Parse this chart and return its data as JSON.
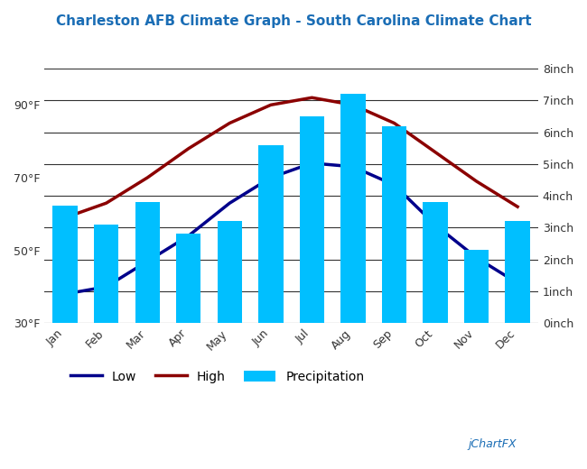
{
  "title": "Charleston AFB Climate Graph - South Carolina Climate Chart",
  "months": [
    "Jan",
    "Feb",
    "Mar",
    "Apr",
    "May",
    "Jun",
    "Jul",
    "Aug",
    "Sep",
    "Oct",
    "Nov",
    "Dec"
  ],
  "temp_high": [
    59,
    63,
    70,
    78,
    85,
    90,
    92,
    90,
    85,
    77,
    69,
    62
  ],
  "temp_low": [
    38,
    40,
    47,
    54,
    63,
    70,
    74,
    73,
    68,
    57,
    48,
    41
  ],
  "precipitation": [
    3.7,
    3.1,
    3.8,
    2.8,
    3.2,
    5.6,
    6.5,
    7.2,
    6.2,
    3.8,
    2.3,
    3.2
  ],
  "bar_color": "#00BFFF",
  "line_low_color": "#00008B",
  "line_high_color": "#8B0000",
  "title_color": "#1a6db5",
  "temp_ylim": [
    30,
    100
  ],
  "precip_ylim": [
    0,
    8
  ],
  "temp_yticks": [
    30,
    50,
    70,
    90
  ],
  "temp_yticklabels": [
    "30°F",
    "50°F",
    "70°F",
    "90°F"
  ],
  "precip_yticks": [
    0,
    1,
    2,
    3,
    4,
    5,
    6,
    7,
    8
  ],
  "precip_yticklabels": [
    "0inch",
    "1inch",
    "2inch",
    "3inch",
    "4inch",
    "5inch",
    "6inch",
    "7inch",
    "8inch"
  ],
  "bg_color": "#ffffff",
  "grid_color": "#333333",
  "watermark": "jChartFX",
  "legend_labels": [
    "Low",
    "High",
    "Precipitation"
  ]
}
